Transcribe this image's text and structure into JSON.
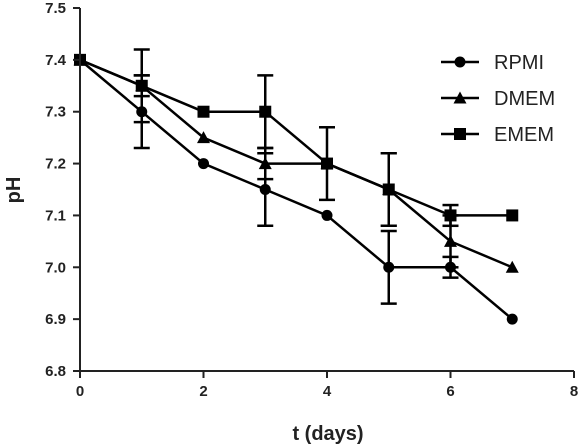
{
  "chart_data": {
    "type": "line",
    "xlabel": "t (days)",
    "ylabel": "pH",
    "xlim": [
      0,
      8
    ],
    "ylim": [
      6.8,
      7.5
    ],
    "x_ticks": [
      "0",
      "2",
      "4",
      "6",
      "8"
    ],
    "y_ticks": [
      "6.8",
      "6.9",
      "7.0",
      "7.1",
      "7.2",
      "7.3",
      "7.4",
      "7.5"
    ],
    "grid": false,
    "legend_position": "top-right",
    "series": [
      {
        "name": "RPMI",
        "marker": "circle",
        "x": [
          0,
          1,
          2,
          3,
          4,
          5,
          6,
          7
        ],
        "y": [
          7.4,
          7.3,
          7.2,
          7.15,
          7.1,
          7.0,
          7.0,
          6.9
        ],
        "err": [
          0,
          0.07,
          0,
          0.07,
          0,
          0.07,
          0.02,
          0
        ]
      },
      {
        "name": "DMEM",
        "marker": "triangle",
        "x": [
          0,
          1,
          2,
          3,
          4,
          5,
          6,
          7
        ],
        "y": [
          7.4,
          7.35,
          7.25,
          7.2,
          7.2,
          7.15,
          7.05,
          7.0
        ],
        "err": [
          0,
          0.02,
          0,
          0.03,
          0,
          0.07,
          0.05,
          0
        ]
      },
      {
        "name": "EMEM",
        "marker": "square",
        "x": [
          0,
          1,
          2,
          3,
          4,
          5,
          6,
          7
        ],
        "y": [
          7.4,
          7.35,
          7.3,
          7.3,
          7.2,
          7.15,
          7.1,
          7.1
        ],
        "err": [
          0,
          0.07,
          0,
          0.07,
          0.07,
          0.07,
          0.02,
          0
        ]
      }
    ],
    "colors": {
      "line": "#000000",
      "axis": "#222222"
    }
  }
}
